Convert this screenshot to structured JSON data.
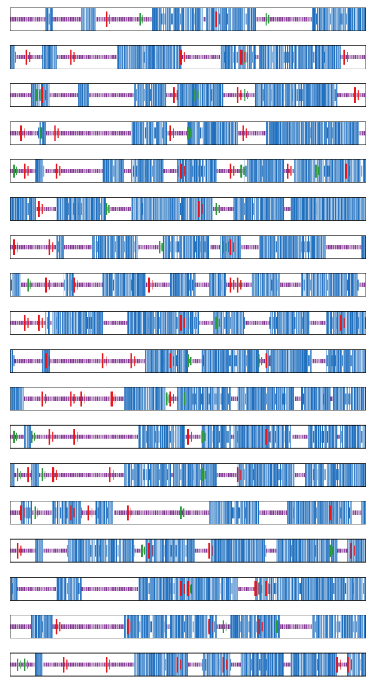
{
  "chart_data": {
    "type": "barcode-tracks",
    "n_tracks": 18,
    "title": "",
    "xlabel": "",
    "ylabel": "",
    "xlim": [
      0,
      1000
    ],
    "grid": false,
    "legend": "none",
    "colors": {
      "dense": "#1f6fbf",
      "sparse": "#7b2a8b",
      "highlight": "#e8151b",
      "accent": "#2a9a3a",
      "frame": "#000000"
    },
    "tracks": [
      {
        "blue_blocks": [
          [
            100,
            120
          ],
          [
            200,
            240
          ],
          [
            400,
            540
          ],
          [
            550,
            690
          ],
          [
            850,
            1000
          ]
        ],
        "red_marks": [
          270,
          580
        ],
        "green_marks": [
          365,
          720
        ]
      },
      {
        "blue_blocks": [
          [
            0,
            15
          ],
          [
            90,
            130
          ],
          [
            300,
            480
          ],
          [
            590,
            690
          ],
          [
            700,
            930
          ]
        ],
        "red_marks": [
          45,
          170,
          480,
          650,
          940
        ],
        "green_marks": [
          660
        ]
      },
      {
        "blue_blocks": [
          [
            60,
            110
          ],
          [
            190,
            220
          ],
          [
            350,
            440
          ],
          [
            470,
            600
          ],
          [
            690,
            920
          ]
        ],
        "red_marks": [
          90,
          460,
          640,
          970
        ],
        "green_marks": [
          75,
          520,
          660
        ]
      },
      {
        "blue_blocks": [
          [
            80,
            100
          ],
          [
            340,
            440
          ],
          [
            500,
            640
          ],
          [
            720,
            980
          ]
        ],
        "red_marks": [
          30,
          125,
          450,
          655
        ],
        "green_marks": [
          85,
          500
        ]
      },
      {
        "blue_blocks": [
          [
            70,
            95
          ],
          [
            260,
            320
          ],
          [
            340,
            430
          ],
          [
            470,
            580
          ],
          [
            660,
            770
          ],
          [
            800,
            1000
          ]
        ],
        "red_marks": [
          40,
          130,
          480,
          620,
          780,
          945
        ],
        "green_marks": [
          10,
          650,
          860
        ]
      },
      {
        "blue_blocks": [
          [
            0,
            70
          ],
          [
            130,
            270
          ],
          [
            340,
            570
          ],
          [
            630,
            770
          ],
          [
            790,
            1000
          ]
        ],
        "red_marks": [
          80,
          530
        ],
        "green_marks": [
          270,
          580
        ]
      },
      {
        "blue_blocks": [
          [
            130,
            150
          ],
          [
            230,
            360
          ],
          [
            430,
            560
          ],
          [
            590,
            650
          ],
          [
            700,
            890
          ],
          [
            990,
            1000
          ]
        ],
        "red_marks": [
          10,
          110,
          620
        ],
        "green_marks": [
          420,
          600
        ]
      },
      {
        "blue_blocks": [
          [
            0,
            30
          ],
          [
            150,
            180
          ],
          [
            260,
            380
          ],
          [
            450,
            520
          ],
          [
            560,
            610
          ],
          [
            680,
            760
          ],
          [
            820,
            980
          ]
        ],
        "red_marks": [
          100,
          180,
          390,
          620,
          640
        ],
        "green_marks": [
          50,
          640
        ]
      },
      {
        "blue_blocks": [
          [
            100,
            110
          ],
          [
            120,
            260
          ],
          [
            330,
            530
          ],
          [
            570,
            660
          ],
          [
            730,
            840
          ],
          [
            890,
            1000
          ]
        ],
        "red_marks": [
          40,
          80,
          480,
          930
        ],
        "green_marks": [
          580
        ]
      },
      {
        "blue_blocks": [
          [
            0,
            10
          ],
          [
            90,
            110
          ],
          [
            380,
            500
          ],
          [
            540,
            700
          ],
          [
            720,
            850
          ],
          [
            890,
            1000
          ]
        ],
        "red_marks": [
          100,
          260,
          340,
          450,
          720
        ],
        "green_marks": [
          500,
          700
        ]
      },
      {
        "blue_blocks": [
          [
            0,
            40
          ],
          [
            320,
            440
          ],
          [
            470,
            620
          ],
          [
            640,
            800
          ],
          [
            820,
            900
          ],
          [
            910,
            1000
          ]
        ],
        "red_marks": [
          90,
          170,
          200,
          285,
          450
        ],
        "green_marks": [
          440,
          490
        ]
      },
      {
        "blue_blocks": [
          [
            40,
            60
          ],
          [
            360,
            490
          ],
          [
            540,
            620
          ],
          [
            630,
            790
          ],
          [
            840,
            920
          ],
          [
            930,
            1000
          ]
        ],
        "red_marks": [
          110,
          180,
          500,
          720
        ],
        "green_marks": [
          10,
          60,
          540
        ]
      },
      {
        "blue_blocks": [
          [
            0,
            10
          ],
          [
            60,
            80
          ],
          [
            320,
            450
          ],
          [
            460,
            580
          ],
          [
            640,
            800
          ],
          [
            830,
            1000
          ]
        ],
        "red_marks": [
          50,
          120,
          280,
          640
        ],
        "green_marks": [
          20,
          90,
          540
        ]
      },
      {
        "blue_blocks": [
          [
            30,
            60
          ],
          [
            120,
            200
          ],
          [
            240,
            290
          ],
          [
            560,
            700
          ],
          [
            780,
            960
          ],
          [
            990,
            1000
          ]
        ],
        "red_marks": [
          30,
          170,
          220,
          330,
          900
        ],
        "green_marks": [
          70,
          480
        ]
      },
      {
        "blue_blocks": [
          [
            70,
            90
          ],
          [
            160,
            350
          ],
          [
            380,
            520
          ],
          [
            560,
            720
          ],
          [
            750,
            920
          ],
          [
            950,
            1000
          ]
        ],
        "red_marks": [
          20,
          390,
          560,
          960
        ],
        "green_marks": [
          370,
          900
        ]
      },
      {
        "blue_blocks": [
          [
            0,
            20
          ],
          [
            130,
            200
          ],
          [
            360,
            640
          ],
          [
            690,
            1000
          ]
        ],
        "red_marks": [
          480,
          500,
          690,
          720
        ],
        "green_marks": [
          500,
          700
        ]
      },
      {
        "blue_blocks": [
          [
            60,
            120
          ],
          [
            320,
            440
          ],
          [
            450,
            580
          ],
          [
            620,
            760
          ],
          [
            850,
            1000
          ]
        ],
        "red_marks": [
          130,
          330,
          560,
          700
        ],
        "green_marks": [
          600,
          750
        ]
      },
      {
        "blue_blocks": [
          [
            70,
            90
          ],
          [
            350,
            500
          ],
          [
            540,
            620
          ],
          [
            650,
            770
          ],
          [
            790,
            920
          ],
          [
            950,
            1000
          ]
        ],
        "red_marks": [
          150,
          270,
          470,
          600,
          920,
          950
        ],
        "green_marks": [
          20,
          40
        ]
      }
    ]
  }
}
